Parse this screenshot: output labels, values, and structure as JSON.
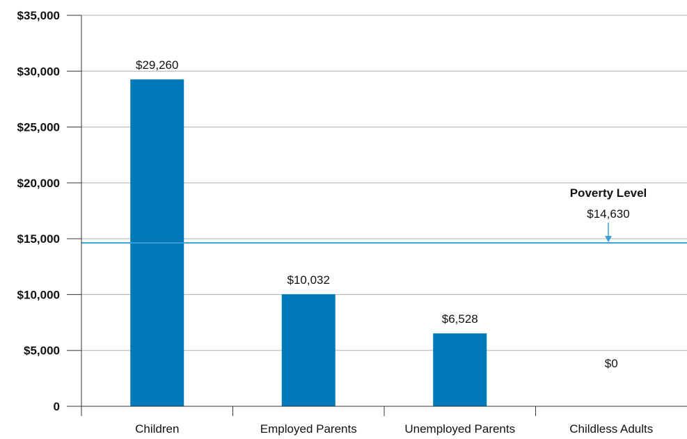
{
  "chart_data": {
    "type": "bar",
    "title": "",
    "xlabel": "",
    "ylabel": "",
    "categories": [
      "Children",
      "Employed Parents",
      "Unemployed Parents",
      "Childless Adults"
    ],
    "values": [
      29260,
      10032,
      6528,
      0
    ],
    "value_labels": [
      "$29,260",
      "$10,032",
      "$6,528",
      "$0"
    ],
    "ylim": [
      0,
      35000
    ],
    "yticks": [
      0,
      5000,
      10000,
      15000,
      20000,
      25000,
      30000,
      35000
    ],
    "ytick_labels": [
      "0",
      "$5,000",
      "$10,000",
      "$15,000",
      "$20,000",
      "$25,000",
      "$30,000",
      "$35,000"
    ],
    "grid": true,
    "reference_line": {
      "value": 14630,
      "title": "Poverty Level",
      "value_label": "$14,630"
    },
    "colors": {
      "bar": "#0079b8",
      "reference_line": "#3a9fd6",
      "grid": "#b0b0b0",
      "axis": "#333333"
    }
  }
}
